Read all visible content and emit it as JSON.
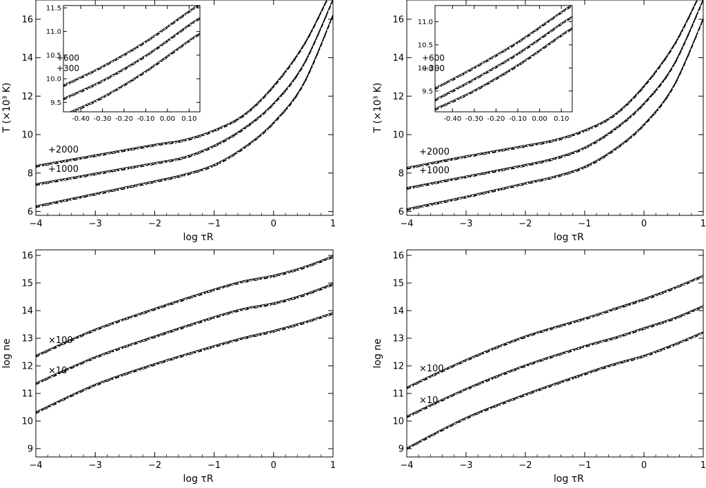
{
  "chart_data": [
    {
      "id": "temp_left",
      "type": "line",
      "xlabel": "log τR",
      "ylabel": "T (×10³ K)",
      "xlim": [
        -4,
        1
      ],
      "ylim": [
        5.8,
        17
      ],
      "xticks": [
        -4,
        -3,
        -2,
        -1,
        0,
        1
      ],
      "yticks": [
        6,
        8,
        10,
        12,
        14,
        16
      ],
      "curves": [
        {
          "name": "",
          "x": [
            -4,
            -3,
            -2,
            -1.5,
            -1,
            -0.5,
            0,
            0.5,
            1
          ],
          "y": [
            6.25,
            6.9,
            7.55,
            7.9,
            8.4,
            9.3,
            10.6,
            12.6,
            16.2
          ]
        },
        {
          "name": "",
          "x": [
            -4,
            -3,
            -2,
            -1.5,
            -1,
            -0.5,
            0,
            0.5,
            1
          ],
          "y": [
            7.4,
            7.95,
            8.5,
            8.8,
            9.4,
            10.3,
            11.6,
            13.6,
            17.0
          ]
        },
        {
          "name": "",
          "x": [
            -4,
            -3,
            -2,
            -1.5,
            -1,
            -0.5,
            0,
            0.5,
            0.9
          ],
          "y": [
            8.35,
            8.9,
            9.45,
            9.7,
            10.2,
            11.0,
            12.5,
            14.6,
            17.0
          ]
        }
      ],
      "annotations": [
        "+2000",
        "+1000"
      ],
      "inset": {
        "xlim": [
          -0.48,
          0.15
        ],
        "ylim": [
          9.3,
          11.55
        ],
        "xticks": [
          -0.4,
          -0.3,
          -0.2,
          -0.1,
          0.0,
          0.1
        ],
        "xticklabels": [
          "-0.40",
          "-0.30",
          "-0.20",
          "-0.10",
          "0.00",
          "0.10"
        ],
        "yticks": [
          9.5,
          10.0,
          10.5,
          11.0,
          11.5
        ],
        "yticklabels": [
          "9.5",
          "10.0",
          "10.5",
          "11.0",
          "11.5"
        ],
        "annotations": [
          "+600",
          "+300"
        ],
        "curves": [
          {
            "x": [
              -0.48,
              -0.3,
              -0.1,
              0.1,
              0.15
            ],
            "y": [
              9.22,
              9.6,
              10.15,
              10.8,
              10.95
            ]
          },
          {
            "x": [
              -0.48,
              -0.3,
              -0.1,
              0.1,
              0.15
            ],
            "y": [
              9.57,
              9.95,
              10.48,
              11.13,
              11.28
            ]
          },
          {
            "x": [
              -0.48,
              -0.3,
              -0.1,
              0.1,
              0.15
            ],
            "y": [
              9.85,
              10.25,
              10.78,
              11.42,
              11.57
            ]
          }
        ]
      }
    },
    {
      "id": "temp_right",
      "type": "line",
      "xlabel": "log τR",
      "ylabel": "T (×10³ K)",
      "xlim": [
        -4,
        1
      ],
      "ylim": [
        5.8,
        17
      ],
      "xticks": [
        -4,
        -3,
        -2,
        -1,
        0,
        1
      ],
      "yticks": [
        6,
        8,
        10,
        12,
        14,
        16
      ],
      "curves": [
        {
          "name": "",
          "x": [
            -4,
            -3,
            -2,
            -1.5,
            -1,
            -0.5,
            0,
            0.5,
            1
          ],
          "y": [
            6.1,
            6.75,
            7.45,
            7.8,
            8.3,
            9.2,
            10.5,
            12.5,
            16.0
          ]
        },
        {
          "name": "",
          "x": [
            -4,
            -3,
            -2,
            -1.5,
            -1,
            -0.5,
            0,
            0.5,
            1
          ],
          "y": [
            7.2,
            7.8,
            8.4,
            8.75,
            9.3,
            10.25,
            11.6,
            13.6,
            17.0
          ]
        },
        {
          "name": "",
          "x": [
            -4,
            -3,
            -2,
            -1.5,
            -1,
            -0.5,
            0,
            0.5,
            0.9
          ],
          "y": [
            8.25,
            8.85,
            9.4,
            9.7,
            10.2,
            11.0,
            12.5,
            14.6,
            17.0
          ]
        }
      ],
      "annotations": [
        "+2000",
        "+1000"
      ],
      "inset": {
        "xlim": [
          -0.48,
          0.15
        ],
        "ylim": [
          9.05,
          11.35
        ],
        "xticks": [
          -0.4,
          -0.3,
          -0.2,
          -0.1,
          0.0,
          0.1
        ],
        "xticklabels": [
          "-0.40",
          "-0.30",
          "-0.20",
          "-0.10",
          "0.00",
          "0.10"
        ],
        "yticks": [
          9.5,
          10.0,
          10.5,
          11.0
        ],
        "yticklabels": [
          "9.5",
          "10.0",
          "10.5",
          "11.0"
        ],
        "annotations": [
          "+600",
          "+300"
        ],
        "curves": [
          {
            "x": [
              -0.48,
              -0.3,
              -0.1,
              0.1,
              0.15
            ],
            "y": [
              9.1,
              9.5,
              10.05,
              10.7,
              10.85
            ]
          },
          {
            "x": [
              -0.48,
              -0.3,
              -0.1,
              0.1,
              0.15
            ],
            "y": [
              9.3,
              9.75,
              10.3,
              10.95,
              11.1
            ]
          },
          {
            "x": [
              -0.48,
              -0.3,
              -0.1,
              0.1,
              0.15
            ],
            "y": [
              9.55,
              10.0,
              10.55,
              11.2,
              11.35
            ]
          }
        ]
      }
    },
    {
      "id": "ne_left",
      "type": "line",
      "xlabel": "log τR",
      "ylabel": "log ne",
      "xlim": [
        -4,
        1
      ],
      "ylim": [
        8.7,
        16.2
      ],
      "xticks": [
        -4,
        -3,
        -2,
        -1,
        0,
        1
      ],
      "yticks": [
        9,
        10,
        11,
        12,
        13,
        14,
        15,
        16
      ],
      "curves": [
        {
          "name": "",
          "x": [
            -4,
            -3,
            -2,
            -1,
            -0.5,
            0,
            0.5,
            1
          ],
          "y": [
            10.3,
            11.3,
            12.05,
            12.7,
            13.0,
            13.25,
            13.55,
            13.9
          ]
        },
        {
          "name": "",
          "x": [
            -4,
            -3,
            -2,
            -1,
            -0.5,
            0,
            0.5,
            1
          ],
          "y": [
            11.35,
            12.3,
            13.05,
            13.75,
            14.05,
            14.25,
            14.55,
            14.95
          ]
        },
        {
          "name": "",
          "x": [
            -4,
            -3,
            -2,
            -1,
            -0.5,
            0,
            0.5,
            1
          ],
          "y": [
            12.35,
            13.3,
            14.05,
            14.75,
            15.05,
            15.25,
            15.55,
            15.95
          ]
        }
      ],
      "annotations": [
        "×100",
        "×10"
      ]
    },
    {
      "id": "ne_right",
      "type": "line",
      "xlabel": "log τR",
      "ylabel": "log ne",
      "xlim": [
        -4,
        1
      ],
      "ylim": [
        8.7,
        16.2
      ],
      "xticks": [
        -4,
        -3,
        -2,
        -1,
        0,
        1
      ],
      "yticks": [
        9,
        10,
        11,
        12,
        13,
        14,
        15,
        16
      ],
      "curves": [
        {
          "name": "",
          "x": [
            -4,
            -3,
            -2,
            -1,
            -0.5,
            0,
            0.5,
            1
          ],
          "y": [
            9.0,
            10.1,
            10.95,
            11.7,
            12.05,
            12.35,
            12.75,
            13.2
          ]
        },
        {
          "name": "",
          "x": [
            -4,
            -3,
            -2,
            -1,
            -0.5,
            0,
            0.5,
            1
          ],
          "y": [
            10.15,
            11.15,
            12.0,
            12.7,
            13.0,
            13.35,
            13.7,
            14.15
          ]
        },
        {
          "name": "",
          "x": [
            -4,
            -3,
            -2,
            -1,
            -0.5,
            0,
            0.5,
            1
          ],
          "y": [
            11.2,
            12.2,
            13.05,
            13.7,
            14.05,
            14.4,
            14.8,
            15.25
          ]
        }
      ],
      "annotations": [
        "×100",
        "×10"
      ]
    }
  ]
}
